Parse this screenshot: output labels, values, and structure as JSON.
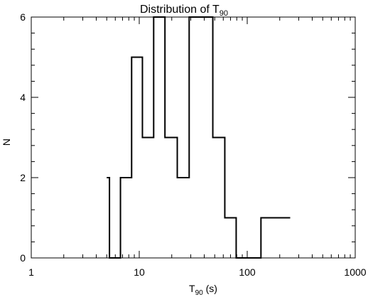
{
  "chart_data": {
    "type": "step",
    "title": {
      "main": "Distribution of T",
      "sub": "90"
    },
    "xlabel": {
      "main": "T",
      "sub": "90",
      "rest": " (s)"
    },
    "ylabel": "N",
    "x_scale": "log",
    "xlim": [
      1,
      1000
    ],
    "ylim": [
      0,
      6
    ],
    "x_ticks": [
      {
        "value": 1,
        "label": "1"
      },
      {
        "value": 10,
        "label": "10"
      },
      {
        "value": 100,
        "label": "100"
      },
      {
        "value": 1000,
        "label": "1000"
      }
    ],
    "y_ticks": [
      {
        "value": 0,
        "label": "0"
      },
      {
        "value": 2,
        "label": "2"
      },
      {
        "value": 4,
        "label": "4"
      },
      {
        "value": 6,
        "label": "6"
      }
    ],
    "bins": [
      {
        "x0": 5.0,
        "x1": 5.3,
        "value": 2
      },
      {
        "x0": 5.3,
        "x1": 6.7,
        "value": 0
      },
      {
        "x0": 6.7,
        "x1": 8.5,
        "value": 2
      },
      {
        "x0": 8.5,
        "x1": 10.7,
        "value": 5
      },
      {
        "x0": 10.7,
        "x1": 13.6,
        "value": 3
      },
      {
        "x0": 13.6,
        "x1": 17.3,
        "value": 6
      },
      {
        "x0": 17.3,
        "x1": 22.5,
        "value": 3
      },
      {
        "x0": 22.5,
        "x1": 29.0,
        "value": 2
      },
      {
        "x0": 29.0,
        "x1": 48.0,
        "value": 6
      },
      {
        "x0": 48.0,
        "x1": 62.0,
        "value": 3
      },
      {
        "x0": 62.0,
        "x1": 79.0,
        "value": 1
      },
      {
        "x0": 79.0,
        "x1": 134.0,
        "value": 0
      },
      {
        "x0": 134.0,
        "x1": 250.0,
        "value": 1
      }
    ]
  }
}
